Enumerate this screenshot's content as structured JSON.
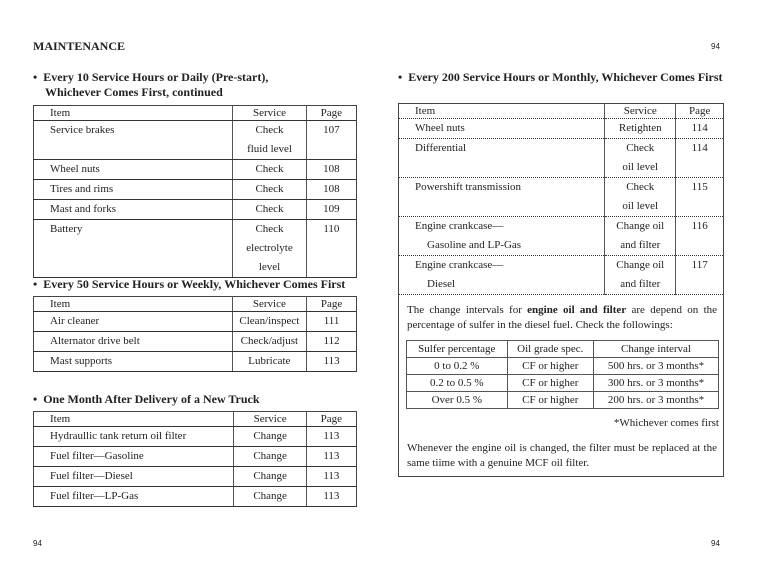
{
  "header": {
    "title": "MAINTENANCE",
    "page_right": "94"
  },
  "footer": {
    "page_left": "94",
    "page_right": "94"
  },
  "left": {
    "section1": {
      "heading_line1": "Every 10 Service Hours or Daily (Pre-start),",
      "heading_line2": "Whichever Comes First, continued",
      "columns": [
        "Item",
        "Service",
        "Page"
      ],
      "rows": [
        {
          "item": "Service brakes",
          "service": "Check",
          "service2": "fluid level",
          "page": "107"
        },
        {
          "item": "Wheel nuts",
          "service": "Check",
          "page": "108"
        },
        {
          "item": "Tires and rims",
          "service": "Check",
          "page": "108"
        },
        {
          "item": "Mast and forks",
          "service": "Check",
          "page": "109"
        },
        {
          "item": "Battery",
          "service": "Check electrolyte",
          "service2": "level",
          "page": "110"
        }
      ]
    },
    "section2": {
      "heading": "Every 50 Service Hours or Weekly, Whichever Comes First",
      "columns": [
        "Item",
        "Service",
        "Page"
      ],
      "rows": [
        {
          "item": "Air cleaner",
          "service": "Clean/inspect",
          "page": "111"
        },
        {
          "item": "Alternator drive belt",
          "service": "Check/adjust",
          "page": "112"
        },
        {
          "item": "Mast supports",
          "service": "Lubricate",
          "page": "113"
        }
      ]
    },
    "section3": {
      "heading": "One Month After Delivery of a New Truck",
      "columns": [
        "Item",
        "Service",
        "Page"
      ],
      "rows": [
        {
          "item": "Hydraullic tank return oil filter",
          "service": "Change",
          "page": "113"
        },
        {
          "item": "Fuel filter—Gasoline",
          "service": "Change",
          "page": "113"
        },
        {
          "item": "Fuel filter—Diesel",
          "service": "Change",
          "page": "113"
        },
        {
          "item": "Fuel filter—LP-Gas",
          "service": "Change",
          "page": "113"
        }
      ]
    }
  },
  "right": {
    "heading": "Every 200 Service Hours or Monthly, Whichever Comes First",
    "columns": [
      "Item",
      "Service",
      "Page"
    ],
    "rows": [
      {
        "item": "Wheel nuts",
        "service": "Retighten",
        "page": "114"
      },
      {
        "item": "Differential",
        "service": "Check",
        "service2": "oil level",
        "page": "114"
      },
      {
        "item": "Powershift transmission",
        "service": "Check",
        "service2": "oil level",
        "page": "115"
      },
      {
        "item": "Engine crankcase—",
        "item2": "Gasoline and LP-Gas",
        "service": "Change oil",
        "service2": "and filter",
        "page": "116"
      },
      {
        "item": "Engine crankcase—",
        "item2": "Diesel",
        "service": "Change oil",
        "service2": "and filter",
        "page": "117"
      }
    ],
    "note": {
      "text_before": "The change intervals for ",
      "bold": "engine oil and filter",
      "text_after": " are depend on the percentage of sulfer in the diesel fuel.  Check the followings:"
    },
    "sulfer_table": {
      "columns": [
        "Sulfer percentage",
        "Oil grade spec.",
        "Change interval"
      ],
      "rows": [
        [
          "0 to 0.2 %",
          "CF or higher",
          "500 hrs. or 3 months*"
        ],
        [
          "0.2 to 0.5 %",
          "CF or higher",
          "300 hrs. or 3 months*"
        ],
        [
          "Over 0.5 %",
          "CF or higher",
          "200 hrs. or 3 months*"
        ]
      ]
    },
    "footnote": "*Whichever comes first",
    "filter_note": "Whenever the engine oil is changed, the filter must be replaced at the same tiime with a genuine MCF oil filter."
  }
}
